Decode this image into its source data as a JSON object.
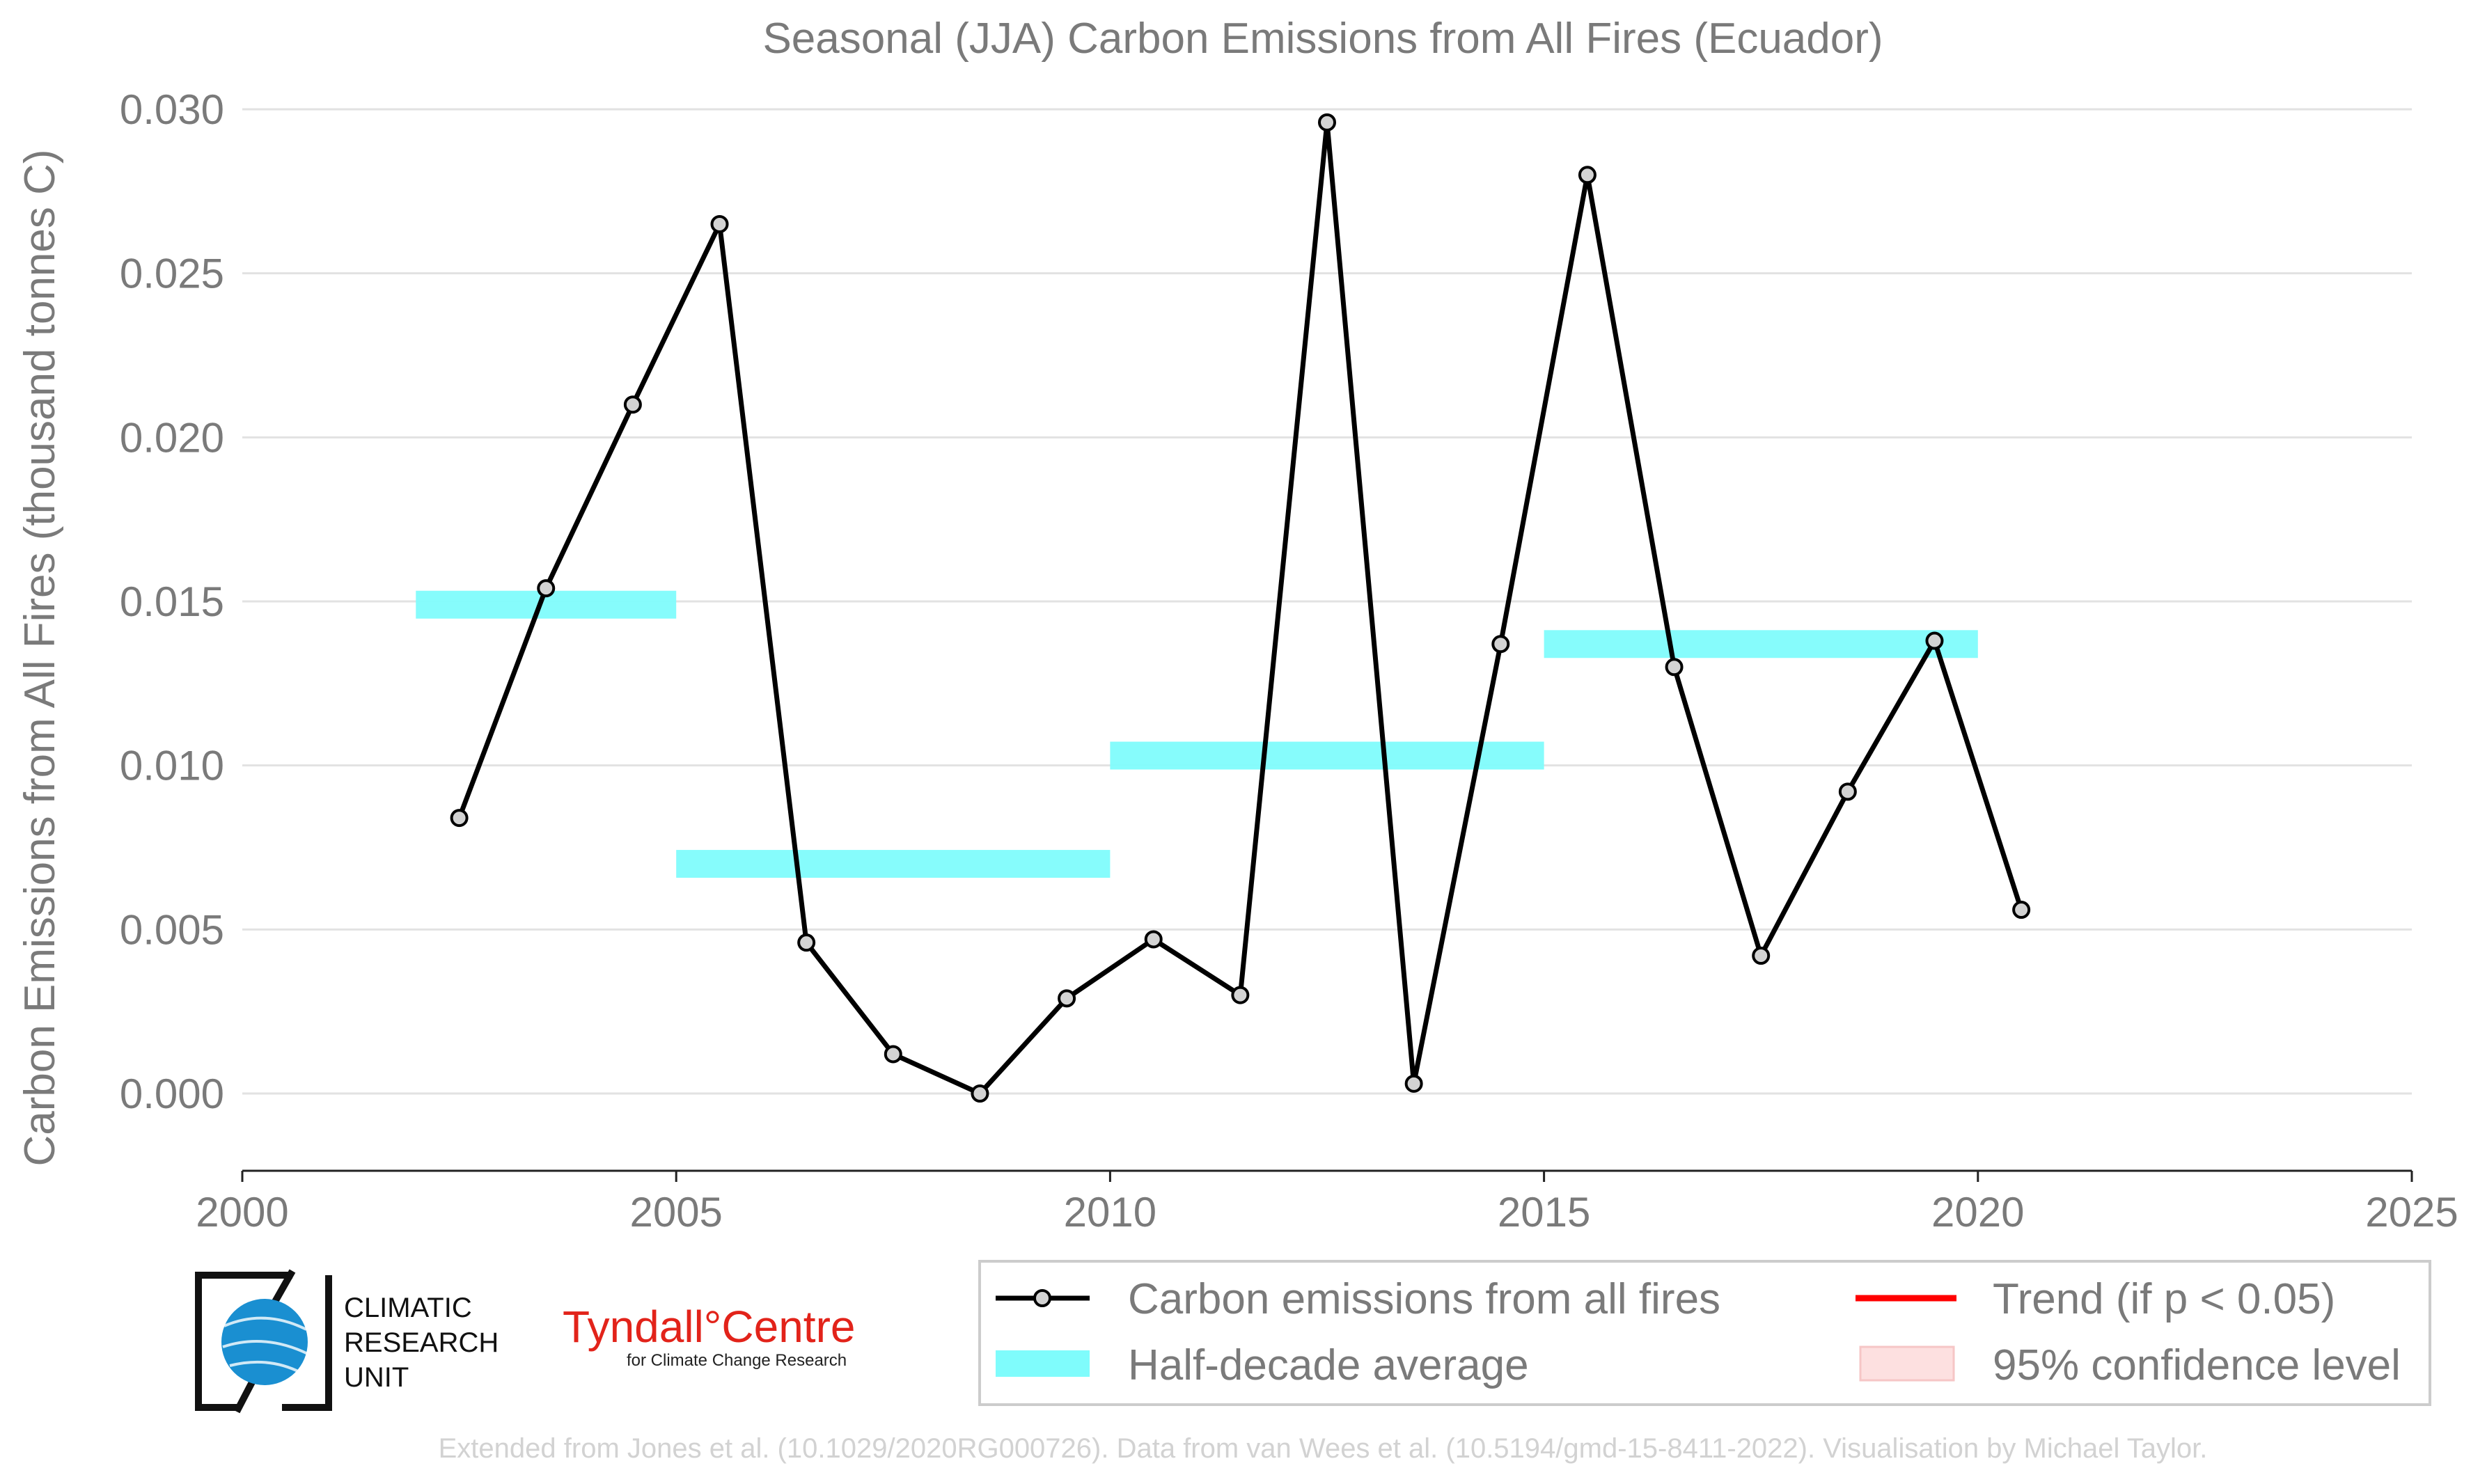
{
  "chart_data": {
    "type": "line",
    "title": "Seasonal (JJA) Carbon Emissions from All Fires (Ecuador)",
    "xlabel": "",
    "ylabel": "Carbon Emissions from All Fires (thousand tonnes C)",
    "xlim": [
      2000,
      2025
    ],
    "ylim": [
      0,
      0.03
    ],
    "x_ticks": [
      "2000",
      "2005",
      "2010",
      "2015",
      "2020",
      "2025"
    ],
    "y_ticks": [
      "0.000",
      "0.005",
      "0.010",
      "0.015",
      "0.020",
      "0.025",
      "0.030"
    ],
    "grid": "horizontal",
    "legend_position": "bottom-right",
    "series": [
      {
        "name": "Carbon emissions from all fires",
        "color": "#000000",
        "marker_color": "#d3d3d3",
        "x": [
          2002.5,
          2003.5,
          2004.5,
          2005.5,
          2006.5,
          2007.5,
          2008.5,
          2009.5,
          2010.5,
          2011.5,
          2012.5,
          2013.5,
          2014.5,
          2015.5,
          2016.5,
          2017.5,
          2018.5,
          2019.5,
          2020.5
        ],
        "values": [
          0.0084,
          0.0154,
          0.021,
          0.0265,
          0.0046,
          0.0012,
          0.0,
          0.0029,
          0.0047,
          0.003,
          0.0296,
          0.0003,
          0.0137,
          0.028,
          0.013,
          0.0042,
          0.0092,
          0.0138,
          0.0056
        ]
      }
    ],
    "half_decade_average": {
      "name": "Half-decade average",
      "color": "#7ffcfc",
      "segments": [
        {
          "x_start": 2002,
          "x_end": 2005,
          "value": 0.0149
        },
        {
          "x_start": 2005,
          "x_end": 2010,
          "value": 0.007
        },
        {
          "x_start": 2010,
          "x_end": 2015,
          "value": 0.0103
        },
        {
          "x_start": 2015,
          "x_end": 2020,
          "value": 0.0137
        }
      ]
    },
    "legend": [
      {
        "label": "Carbon emissions from all fires",
        "kind": "line-marker"
      },
      {
        "label": "Trend (if p < 0.05)",
        "kind": "line",
        "color": "#ff0000"
      },
      {
        "label": "Half-decade average",
        "kind": "band",
        "color": "#7ffcfc"
      },
      {
        "label": "95% confidence level",
        "kind": "patch",
        "color": "#fde0e0"
      }
    ]
  },
  "logos": {
    "cru": {
      "line1": "CLIMATIC",
      "line2": "RESEARCH",
      "line3": "UNIT"
    },
    "tyndall": {
      "main": "Tyndall°Centre",
      "sub": "for Climate Change Research"
    }
  },
  "credit": "Extended from Jones et al. (10.1029/2020RG000726). Data from van Wees et al. (10.5194/gmd-15-8411-2022). Visualisation by Michael Taylor."
}
